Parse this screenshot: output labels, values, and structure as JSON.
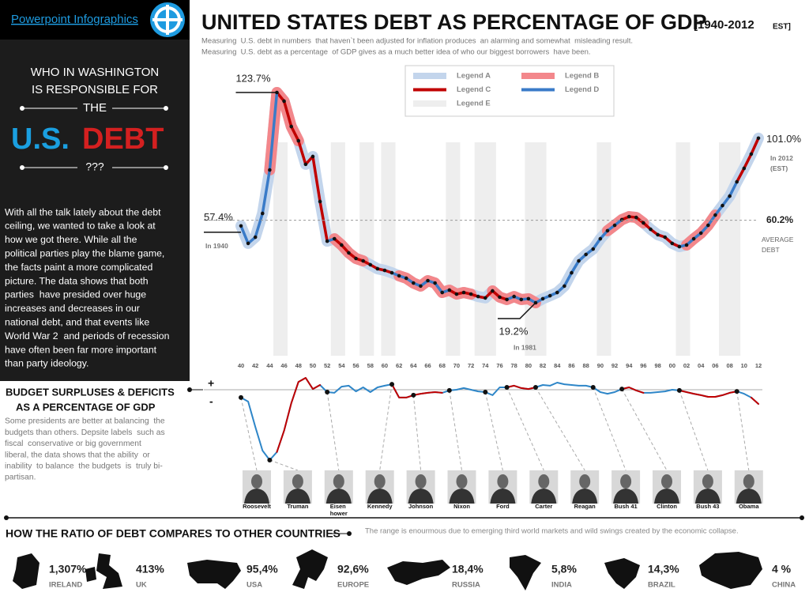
{
  "header": {
    "brand": "Powerpoint Infographics",
    "title": "UNITED STATES DEBT AS PERCENTAGE OF GDP",
    "range": "[1940-2012",
    "range_end": "EST]",
    "subtitle": [
      "Measuring  U.S. debt in numbers  that haven`t been adjusted for inflation produces  an alarming and somewhat  misleading result.",
      "Measuring  U.S. debt as a percentage  of GDP gives as a much better idea of who our biggest borrowers  have been."
    ]
  },
  "sidebar": {
    "intro": [
      "WHO IN WASHINGTON",
      "IS RESPONSIBLE FOR",
      "THE"
    ],
    "us": "U.S.",
    "debt": "DEBT",
    "question": "???",
    "body": [
      "With all the talk lately about the debt",
      "ceiling, we wanted to take a look at",
      "how we got there. While all the",
      "political parties play the blame game,",
      "the facts paint a more complicated",
      "picture. The data shows that both",
      "parties  have presided over huge",
      "increases and decreases in our",
      "national debt, and that events like",
      "World War 2  and periods of recession",
      "have often been far more important",
      "than party ideology."
    ]
  },
  "chart_data": [
    {
      "type": "line",
      "xlim": [
        1940,
        2012
      ],
      "x": [
        1940,
        1941,
        1942,
        1943,
        1944,
        1945,
        1946,
        1947,
        1948,
        1949,
        1950,
        1951,
        1952,
        1953,
        1954,
        1955,
        1956,
        1957,
        1958,
        1959,
        1960,
        1961,
        1962,
        1963,
        1964,
        1965,
        1966,
        1967,
        1968,
        1969,
        1970,
        1971,
        1972,
        1973,
        1974,
        1975,
        1976,
        1977,
        1978,
        1979,
        1980,
        1981,
        1982,
        1983,
        1984,
        1985,
        1986,
        1987,
        1988,
        1989,
        1990,
        1991,
        1992,
        1993,
        1994,
        1995,
        1996,
        1997,
        1998,
        1999,
        2000,
        2001,
        2002,
        2003,
        2004,
        2005,
        2006,
        2007,
        2008,
        2009,
        2010,
        2011,
        2012
      ],
      "values": [
        57.4,
        48.7,
        51.8,
        63.6,
        85.2,
        123.7,
        119.4,
        106.8,
        99.7,
        88.0,
        91.9,
        69.5,
        49.8,
        51.0,
        47.9,
        44.0,
        41.2,
        40.0,
        38.1,
        36.1,
        35.3,
        34.1,
        32.6,
        31.4,
        29.0,
        27.5,
        30.2,
        29.0,
        24.3,
        25.5,
        23.5,
        24.3,
        23.5,
        22.3,
        21.6,
        25.1,
        22.0,
        20.8,
        22.3,
        20.8,
        21.2,
        19.2,
        21.2,
        22.7,
        24.3,
        27.5,
        34.1,
        40.0,
        43.2,
        45.9,
        51.0,
        55.0,
        57.7,
        60.5,
        62.0,
        61.6,
        58.9,
        55.7,
        53.0,
        51.8,
        48.7,
        47.1,
        47.9,
        51.0,
        53.8,
        57.7,
        62.8,
        67.5,
        72.2,
        79.3,
        86.0,
        93.1,
        101.0
      ],
      "value_labels": [
        "57.4%",
        null,
        null,
        null,
        null,
        "123.7%",
        null,
        null,
        null,
        null,
        null,
        null,
        null,
        null,
        null,
        null,
        null,
        null,
        null,
        null,
        null,
        null,
        null,
        null,
        null,
        null,
        null,
        null,
        null,
        null,
        null,
        null,
        null,
        null,
        null,
        null,
        null,
        null,
        null,
        null,
        null,
        "19.2%",
        null,
        null,
        null,
        null,
        null,
        null,
        null,
        null,
        null,
        null,
        null,
        null,
        null,
        null,
        null,
        null,
        null,
        null,
        null,
        null,
        null,
        null,
        null,
        null,
        null,
        null,
        null,
        null,
        null,
        null,
        "101.0%"
      ],
      "xticks": [
        {
          "value": 1940,
          "label": "40"
        },
        {
          "value": 1942,
          "label": "42"
        },
        {
          "value": 1944,
          "label": "44"
        },
        {
          "value": 1946,
          "label": "46"
        },
        {
          "value": 1948,
          "label": "48"
        },
        {
          "value": 1950,
          "label": "50"
        },
        {
          "value": 1952,
          "label": "52"
        },
        {
          "value": 1954,
          "label": "54"
        },
        {
          "value": 1956,
          "label": "56"
        },
        {
          "value": 1958,
          "label": "58"
        },
        {
          "value": 1960,
          "label": "60"
        },
        {
          "value": 1962,
          "label": "62"
        },
        {
          "value": 1964,
          "label": "64"
        },
        {
          "value": 1966,
          "label": "66"
        },
        {
          "value": 1968,
          "label": "68"
        },
        {
          "value": 1970,
          "label": "70"
        },
        {
          "value": 1972,
          "label": "72"
        },
        {
          "value": 1974,
          "label": "74"
        },
        {
          "value": 1976,
          "label": "76"
        },
        {
          "value": 1978,
          "label": "78"
        },
        {
          "value": 1980,
          "label": "80"
        },
        {
          "value": 1982,
          "label": "82"
        },
        {
          "value": 1984,
          "label": "84"
        },
        {
          "value": 1986,
          "label": "86"
        },
        {
          "value": 1988,
          "label": "88"
        },
        {
          "value": 1990,
          "label": "90"
        },
        {
          "value": 1992,
          "label": "92"
        },
        {
          "value": 1994,
          "label": "94"
        },
        {
          "value": 1996,
          "label": "96"
        },
        {
          "value": 1998,
          "label": "98"
        },
        {
          "value": 2000,
          "label": "00"
        },
        {
          "value": 2002,
          "label": "02"
        },
        {
          "value": 2004,
          "label": "04"
        },
        {
          "value": 2006,
          "label": "06"
        },
        {
          "value": 2008,
          "label": "08"
        },
        {
          "value": 2010,
          "label": "10"
        },
        {
          "value": 2012,
          "label": "12"
        }
      ],
      "legend_position": "top",
      "legend": [
        {
          "name": "Legend A",
          "color": "#c3d5ec",
          "style": "halo",
          "spans": [
            [
              1940,
              2012
            ]
          ]
        },
        {
          "name": "Legend B",
          "color": "#f3878b",
          "style": "halo",
          "spans": [
            [
              1944,
              1948
            ],
            [
              1953,
              1957
            ],
            [
              1962,
              1972
            ],
            [
              1975,
              1981
            ],
            [
              1991,
              1996
            ],
            [
              2002,
              2006
            ]
          ]
        },
        {
          "name": "Legend C",
          "color": "#c00000",
          "style": "line",
          "spans": [
            [
              1945,
              1952
            ],
            [
              1953,
              1961
            ],
            [
              1969,
              1977
            ],
            [
              1993,
              2001
            ],
            [
              2009,
              2012
            ]
          ]
        },
        {
          "name": "Legend D",
          "color": "#3a7bc8",
          "style": "line",
          "spans": [
            [
              1940,
              1945
            ],
            [
              1952,
              1953
            ],
            [
              1961,
              1969
            ],
            [
              1977,
              1993
            ],
            [
              2001,
              2009
            ]
          ]
        },
        {
          "name": "Legend E",
          "color": "#eeeeee",
          "style": "bar",
          "spans": [
            [
              1945,
              1946
            ],
            [
              1953,
              1954
            ],
            [
              1957,
              1958
            ],
            [
              1960,
              1961
            ],
            [
              1969,
              1970
            ],
            [
              1973,
              1975
            ],
            [
              1980,
              1982
            ],
            [
              1990,
              1991
            ],
            [
              2001,
              2002
            ],
            [
              2007,
              2009
            ]
          ]
        }
      ],
      "annotations": {
        "start": "In 1940",
        "low": "In 1981",
        "end": [
          "In 2012",
          "(EST)"
        ]
      },
      "average": {
        "value": {
          "value": 60.2,
          "label": "60.2%"
        },
        "text": [
          "AVERAGE",
          "DEBT"
        ]
      }
    },
    {
      "type": "line",
      "title": [
        "BUDGET SURPLUSES & DEFICITS",
        "AS A PERCENTAGE OF GDP"
      ],
      "description": [
        "Some presidents are better at balancing  the",
        "budgets than others. Depsite labels  such as",
        "fiscal  conservative or big government",
        "liberal, the data shows that the ability  or",
        "inability  to balance  the budgets  is  truly bi-",
        "partisan."
      ],
      "positive_label": "+",
      "negative_label": "-",
      "xlim": [
        1940,
        2012
      ],
      "x": [
        1940,
        1941,
        1942,
        1943,
        1944,
        1945,
        1946,
        1947,
        1948,
        1949,
        1950,
        1951,
        1952,
        1953,
        1954,
        1955,
        1956,
        1957,
        1958,
        1959,
        1960,
        1961,
        1962,
        1963,
        1964,
        1965,
        1966,
        1967,
        1968,
        1969,
        1970,
        1971,
        1972,
        1973,
        1974,
        1975,
        1976,
        1977,
        1978,
        1979,
        1980,
        1981,
        1982,
        1983,
        1984,
        1985,
        1986,
        1987,
        1988,
        1989,
        1990,
        1991,
        1992,
        1993,
        1994,
        1995,
        1996,
        1997,
        1998,
        1999,
        2000,
        2001,
        2002,
        2003,
        2004,
        2005,
        2006,
        2007,
        2008,
        2009,
        2010,
        2011,
        2012
      ],
      "values": [
        -3.3,
        -5.0,
        -15.7,
        -25.7,
        -29.7,
        -26.3,
        -17.3,
        -5.7,
        3.3,
        5.0,
        0.3,
        2.0,
        -1.0,
        -1.3,
        1.3,
        1.7,
        -0.7,
        1.0,
        -1.0,
        1.0,
        1.7,
        2.3,
        -3.3,
        -3.3,
        -2.3,
        -1.7,
        -1.3,
        -1.0,
        -1.3,
        -0.3,
        0,
        0.7,
        0,
        -0.7,
        -1.0,
        -2.3,
        1.0,
        1.0,
        1.7,
        0.7,
        0.3,
        1.0,
        2.0,
        1.7,
        3.0,
        2.3,
        2.0,
        1.7,
        1.7,
        1.0,
        -1.0,
        -1.7,
        -1.0,
        0.3,
        1.0,
        -0.3,
        -1.3,
        -1.3,
        -1.0,
        -0.7,
        0,
        -0.3,
        -1.0,
        -1.7,
        -2.3,
        -3.0,
        -3.0,
        -2.3,
        -1.3,
        -0.7,
        -1.7,
        -3.3,
        -6.0
      ],
      "color": "#2e86c8",
      "highlight": {
        "color": "#c00000",
        "spans": [
          [
            1945,
            1951
          ],
          [
            1961,
            1968
          ],
          [
            1977,
            1981
          ],
          [
            1993,
            1996
          ],
          [
            2001,
            2009
          ],
          [
            2011,
            2012
          ]
        ]
      }
    }
  ],
  "presidents": [
    {
      "name": "Roosevelt",
      "year": 1940
    },
    {
      "name": "Truman",
      "year": 1944
    },
    {
      "name": "Eisen hower",
      "year": 1952
    },
    {
      "name": "Kennedy",
      "year": 1961
    },
    {
      "name": "Johnson",
      "year": 1964
    },
    {
      "name": "Nixon",
      "year": 1969
    },
    {
      "name": "Ford",
      "year": 1974
    },
    {
      "name": "Carter",
      "year": 1977
    },
    {
      "name": "Reagan",
      "year": 1981
    },
    {
      "name": "Bush 41",
      "year": 1989
    },
    {
      "name": "Clinton",
      "year": 1993
    },
    {
      "name": "Bush 43",
      "year": 2001
    },
    {
      "name": "Obama",
      "year": 2009
    }
  ],
  "countries": {
    "title": "HOW THE RATIO OF DEBT COMPARES TO OTHER COUNTRIES",
    "note": "The range is enourmous due to emerging third world markets and wild swings created by the economic collapse.",
    "items": [
      {
        "value": "1,307%",
        "name": "IRELAND"
      },
      {
        "value": "413%",
        "name": "UK"
      },
      {
        "value": "95,4%",
        "name": "USA"
      },
      {
        "value": "92,6%",
        "name": "EUROPE"
      },
      {
        "value": "18,4%",
        "name": "RUSSIA"
      },
      {
        "value": "5,8%",
        "name": "INDIA"
      },
      {
        "value": "14,3%",
        "name": "BRAZIL"
      },
      {
        "value": "4 %",
        "name": "CHINA"
      }
    ]
  }
}
